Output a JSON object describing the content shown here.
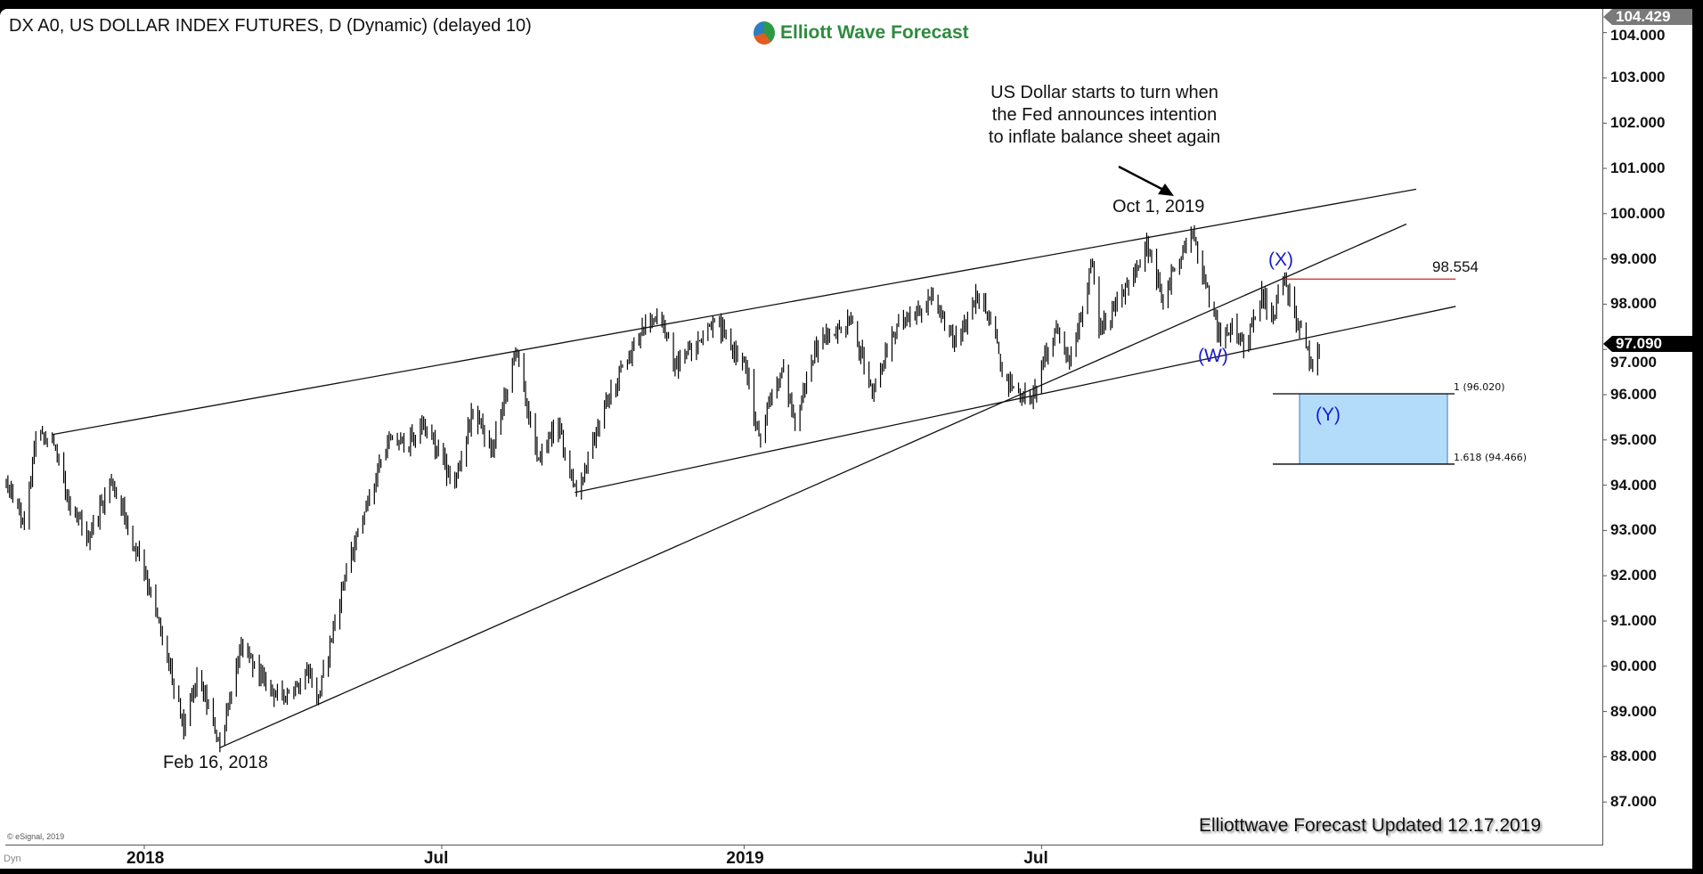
{
  "header": {
    "title": "DX A0, US DOLLAR INDEX FUTURES, D (Dynamic) (delayed 10)",
    "logo_text": "Elliott Wave Forecast"
  },
  "annotations": {
    "note_lines": [
      "US Dollar starts to turn when",
      "the Fed announces intention",
      "to inflate balance sheet again"
    ],
    "high_label": "Oct 1, 2019",
    "low_label": "Feb 16, 2018",
    "wave_x": "(X)",
    "wave_w": "(W)",
    "wave_y": "(Y)",
    "level_label": "98.554",
    "fib_1": "1 (96.020)",
    "fib_1618": "1.618 (94.466)"
  },
  "footer": {
    "updated": "Elliottwave Forecast Updated 12.17.2019",
    "copyright": "© eSignal, 2019",
    "dyn": "Dyn"
  },
  "colors": {
    "bars": "#000000",
    "trendline": "#111111",
    "level_line": "#cc2222",
    "target_box": "#b3dcfb",
    "wave_labels": "#1a1acc",
    "last_price_bg": "#000000",
    "high_price_bg": "#7a7a7a"
  },
  "chart_data": {
    "type": "ohlc-bar",
    "title": "DX A0, US DOLLAR INDEX FUTURES, D (Dynamic) (delayed 10)",
    "x_ticks": [
      {
        "date": "2018-01-01",
        "label": "2018"
      },
      {
        "date": "2018-07-01",
        "label": "Jul"
      },
      {
        "date": "2019-01-01",
        "label": "2019"
      },
      {
        "date": "2019-07-01",
        "label": "Jul"
      }
    ],
    "y_ticks": [
      "104.000",
      "103.000",
      "102.000",
      "101.000",
      "100.000",
      "99.000",
      "98.000",
      "97.000",
      "96.000",
      "95.000",
      "94.000",
      "93.000",
      "92.000",
      "91.000",
      "90.000",
      "89.000",
      "88.000",
      "87.000"
    ],
    "ylim": [
      86.6,
      104.5
    ],
    "last_price": "97.090",
    "high_price": "104.429",
    "price_path": [
      [
        "2017-10-09",
        94.0
      ],
      [
        "2017-10-20",
        93.2
      ],
      [
        "2017-10-27",
        95.1
      ],
      [
        "2017-11-07",
        94.9
      ],
      [
        "2017-11-15",
        93.8
      ],
      [
        "2017-11-27",
        92.8
      ],
      [
        "2017-12-12",
        94.1
      ],
      [
        "2017-12-20",
        93.3
      ],
      [
        "2018-01-02",
        92.0
      ],
      [
        "2018-01-12",
        90.6
      ],
      [
        "2018-01-25",
        88.6
      ],
      [
        "2018-02-02",
        89.8
      ],
      [
        "2018-02-16",
        88.3
      ],
      [
        "2018-03-01",
        90.5
      ],
      [
        "2018-03-15",
        89.7
      ],
      [
        "2018-03-27",
        89.2
      ],
      [
        "2018-04-10",
        90.0
      ],
      [
        "2018-04-17",
        89.3
      ],
      [
        "2018-05-01",
        91.7
      ],
      [
        "2018-05-15",
        93.4
      ],
      [
        "2018-05-29",
        94.9
      ],
      [
        "2018-06-14",
        95.0
      ],
      [
        "2018-06-20",
        95.4
      ],
      [
        "2018-07-09",
        94.0
      ],
      [
        "2018-07-19",
        95.6
      ],
      [
        "2018-08-01",
        94.8
      ],
      [
        "2018-08-15",
        97.0
      ],
      [
        "2018-08-28",
        94.6
      ],
      [
        "2018-09-10",
        95.3
      ],
      [
        "2018-09-21",
        93.8
      ],
      [
        "2018-10-10",
        95.9
      ],
      [
        "2018-10-31",
        97.5
      ],
      [
        "2018-11-12",
        97.7
      ],
      [
        "2018-11-20",
        96.6
      ],
      [
        "2018-12-04",
        97.2
      ],
      [
        "2018-12-14",
        97.6
      ],
      [
        "2019-01-02",
        96.6
      ],
      [
        "2019-01-10",
        95.1
      ],
      [
        "2019-01-24",
        96.6
      ],
      [
        "2019-02-01",
        95.4
      ],
      [
        "2019-02-15",
        97.2
      ],
      [
        "2019-03-07",
        97.6
      ],
      [
        "2019-03-20",
        96.0
      ],
      [
        "2019-04-01",
        97.3
      ],
      [
        "2019-04-26",
        98.2
      ],
      [
        "2019-05-10",
        97.1
      ],
      [
        "2019-05-23",
        98.2
      ],
      [
        "2019-06-01",
        97.6
      ],
      [
        "2019-06-07",
        96.4
      ],
      [
        "2019-06-25",
        95.8
      ],
      [
        "2019-07-10",
        97.5
      ],
      [
        "2019-07-18",
        96.7
      ],
      [
        "2019-08-01",
        98.9
      ],
      [
        "2019-08-05",
        97.4
      ],
      [
        "2019-08-23",
        98.4
      ],
      [
        "2019-09-03",
        99.4
      ],
      [
        "2019-09-13",
        98.0
      ],
      [
        "2019-09-20",
        98.8
      ],
      [
        "2019-10-01",
        99.6
      ],
      [
        "2019-10-18",
        97.1
      ],
      [
        "2019-10-25",
        97.6
      ],
      [
        "2019-11-01",
        97.0
      ],
      [
        "2019-11-12",
        98.3
      ],
      [
        "2019-11-19",
        97.7
      ],
      [
        "2019-11-25",
        98.55
      ],
      [
        "2019-12-05",
        97.5
      ],
      [
        "2019-12-13",
        96.6
      ],
      [
        "2019-12-17",
        97.09
      ]
    ],
    "trendlines": [
      {
        "from": [
          "2017-11-06",
          95.12
        ],
        "to": [
          "2020-02-14",
          100.54
        ]
      },
      {
        "from": [
          "2018-09-20",
          93.84
        ],
        "to": [
          "2020-03-09",
          97.95
        ]
      },
      {
        "from": [
          "2018-02-16",
          88.2
        ],
        "to": [
          "2020-02-08",
          99.77
        ]
      }
    ],
    "level": {
      "value": 98.554,
      "from": "2019-11-25",
      "to": "2020-03-09"
    },
    "target_zone": {
      "from": "2019-12-05",
      "to": "2020-03-04",
      "top": 96.02,
      "bottom": 94.466
    }
  }
}
